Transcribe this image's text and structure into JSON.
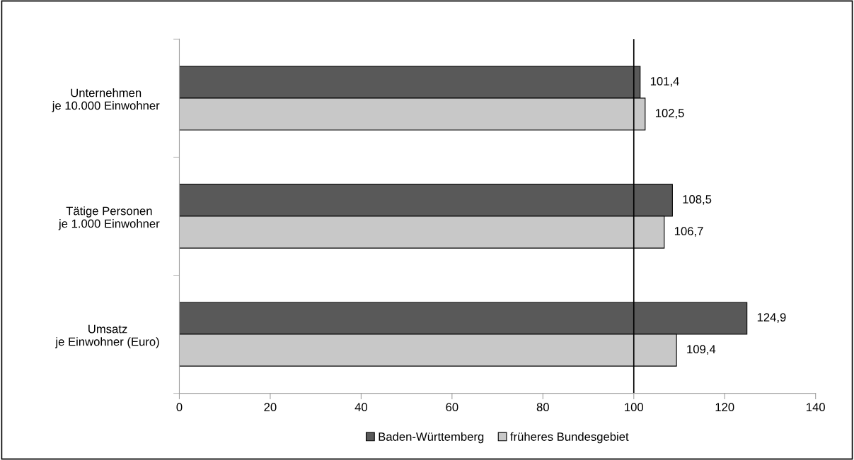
{
  "chart_data": {
    "type": "bar",
    "orientation": "horizontal",
    "categories": [
      "Unternehmen\nje 10.000 Einwohner",
      "Tätige Personen\nje 1.000 Einwohner",
      "Umsatz\nje Einwohner (Euro)"
    ],
    "series": [
      {
        "name": "Baden-Württemberg",
        "color": "#595959",
        "values": [
          101.4,
          108.5,
          124.9
        ],
        "value_labels": [
          "101,4",
          "108,5",
          "124,9"
        ]
      },
      {
        "name": "früheres Bundesgebiet",
        "color": "#c8c8c8",
        "values": [
          102.5,
          106.7,
          109.4
        ],
        "value_labels": [
          "102,5",
          "106,7",
          "109,4"
        ]
      }
    ],
    "xlim": [
      0,
      140
    ],
    "xticks": [
      0,
      20,
      40,
      60,
      80,
      100,
      120,
      140
    ],
    "ref_lines": [
      {
        "axis": "x",
        "value": 100,
        "color": "#000000"
      }
    ],
    "grid": false,
    "legend": "bottom"
  }
}
